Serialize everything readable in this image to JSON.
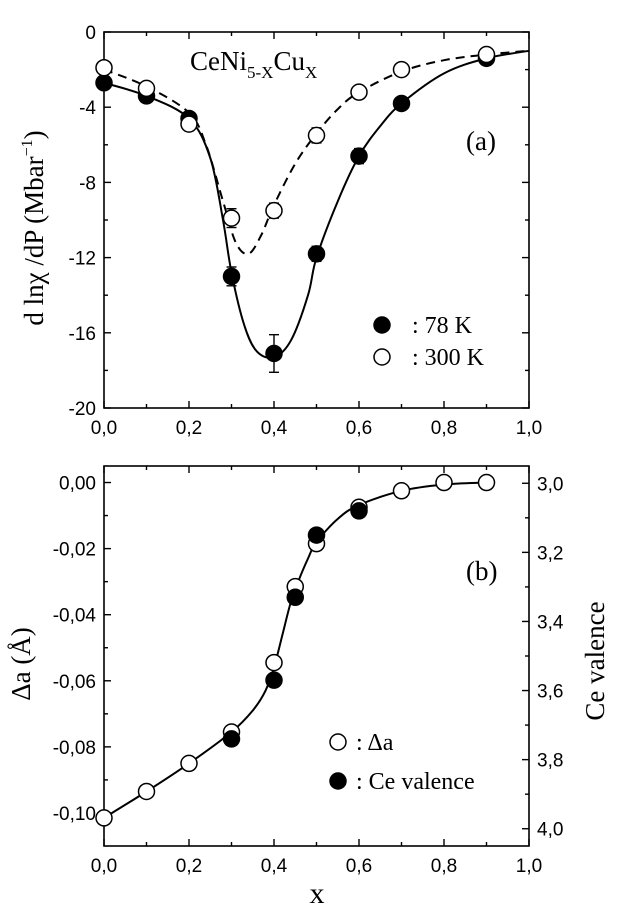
{
  "chart_data": [
    {
      "id": "a",
      "type": "scatter",
      "panel_label": "(a)",
      "title": "CeNi",
      "title_sub1": "5-X",
      "title_mid": "Cu",
      "title_sub2": "X",
      "ylabel_text": "d lnχ /dP (Mbar",
      "ylabel_sup": "−1",
      "ylabel_close": ")",
      "xlim": [
        0,
        1
      ],
      "ylim": [
        -20,
        0
      ],
      "x_ticks": [
        0,
        0.2,
        0.4,
        0.6,
        0.8,
        1.0
      ],
      "x_tick_labels": [
        "0,0",
        "0,2",
        "0,4",
        "0,6",
        "0,8",
        "1,0"
      ],
      "y_ticks": [
        0,
        -4,
        -8,
        -12,
        -16,
        -20
      ],
      "y_tick_labels": [
        "0",
        "-4",
        "-8",
        "-12",
        "-16",
        "-20"
      ],
      "series": [
        {
          "name": ": 78 K",
          "marker": "filled-circle",
          "x": [
            0.0,
            0.1,
            0.2,
            0.3,
            0.4,
            0.5,
            0.6,
            0.7,
            0.9
          ],
          "y": [
            -2.7,
            -3.4,
            -4.6,
            -13.0,
            -17.1,
            -11.8,
            -6.6,
            -3.8,
            -1.4
          ],
          "err": [
            0.3,
            0.3,
            0.3,
            0.5,
            1.0,
            0.4,
            0.4,
            0.2,
            0.2
          ],
          "fit_line": "solid",
          "fit_x": [
            0,
            0.1,
            0.2,
            0.25,
            0.28,
            0.3,
            0.33,
            0.36,
            0.4,
            0.44,
            0.48,
            0.5,
            0.55,
            0.6,
            0.65,
            0.7,
            0.8,
            0.9,
            1.0
          ],
          "fit_y": [
            -2.7,
            -3.4,
            -4.6,
            -6.7,
            -10.0,
            -12.8,
            -15.6,
            -17.0,
            -17.3,
            -16.4,
            -14.0,
            -12.0,
            -9.0,
            -6.6,
            -5.0,
            -3.8,
            -2.2,
            -1.4,
            -1.0
          ]
        },
        {
          "name": ": 300 K",
          "marker": "open-circle",
          "x": [
            0.0,
            0.1,
            0.2,
            0.3,
            0.4,
            0.5,
            0.6,
            0.7,
            0.9
          ],
          "y": [
            -1.9,
            -3.0,
            -4.9,
            -9.9,
            -9.5,
            -5.5,
            -3.2,
            -2.0,
            -1.2
          ],
          "err": [
            0.3,
            0.3,
            0.3,
            0.5,
            0.4,
            0.4,
            0.3,
            0.2,
            0.2
          ],
          "fit_line": "dashed",
          "fit_x": [
            0,
            0.1,
            0.2,
            0.24,
            0.28,
            0.31,
            0.34,
            0.37,
            0.4,
            0.45,
            0.5,
            0.55,
            0.6,
            0.7,
            0.8,
            0.9,
            1.0
          ],
          "fit_y": [
            -2.0,
            -2.9,
            -4.3,
            -6.0,
            -9.0,
            -11.2,
            -11.8,
            -10.8,
            -9.2,
            -7.0,
            -5.4,
            -4.1,
            -3.2,
            -2.1,
            -1.5,
            -1.2,
            -1.0
          ]
        }
      ]
    },
    {
      "id": "b",
      "type": "scatter",
      "panel_label": "(b)",
      "xlabel": "x",
      "ylabel": "Δa (Å)",
      "ylabel_right": "Ce valence",
      "xlim": [
        0,
        1
      ],
      "ylim": [
        -0.11,
        0.005
      ],
      "ylim_right": [
        4.05,
        2.95
      ],
      "x_ticks": [
        0,
        0.2,
        0.4,
        0.6,
        0.8,
        1.0
      ],
      "x_tick_labels": [
        "0,0",
        "0,2",
        "0,4",
        "0,6",
        "0,8",
        "1,0"
      ],
      "y_ticks": [
        0,
        -0.02,
        -0.04,
        -0.06,
        -0.08,
        -0.1
      ],
      "y_tick_labels": [
        "0,00",
        "-0,02",
        "-0,04",
        "-0,06",
        "-0,08",
        "-0,10"
      ],
      "y_right_ticks": [
        3.0,
        3.2,
        3.4,
        3.6,
        3.8,
        4.0
      ],
      "y_right_tick_labels": [
        "3,0",
        "3,2",
        "3,4",
        "3,6",
        "3,8",
        "4,0"
      ],
      "series": [
        {
          "name": ": Δa",
          "marker": "open-circle",
          "axis": "left",
          "x": [
            0.0,
            0.1,
            0.2,
            0.3,
            0.4,
            0.45,
            0.5,
            0.6,
            0.7,
            0.8,
            0.9
          ],
          "y": [
            -0.1015,
            -0.0935,
            -0.085,
            -0.0755,
            -0.0545,
            -0.0315,
            -0.0185,
            -0.0075,
            -0.0025,
            0.0,
            0.0
          ]
        },
        {
          "name": ": Ce valence",
          "marker": "filled-circle",
          "axis": "right",
          "x": [
            0.3,
            0.4,
            0.45,
            0.5,
            0.6
          ],
          "y": [
            3.74,
            3.57,
            3.33,
            3.15,
            3.08
          ]
        }
      ],
      "fit_x": [
        0,
        0.1,
        0.2,
        0.3,
        0.35,
        0.38,
        0.4,
        0.42,
        0.44,
        0.46,
        0.48,
        0.5,
        0.55,
        0.6,
        0.7,
        0.8,
        0.9
      ],
      "fit_y": [
        -0.1015,
        -0.0935,
        -0.085,
        -0.0755,
        -0.069,
        -0.063,
        -0.056,
        -0.046,
        -0.036,
        -0.029,
        -0.023,
        -0.018,
        -0.011,
        -0.0068,
        -0.0025,
        -0.0006,
        0.0
      ]
    }
  ]
}
